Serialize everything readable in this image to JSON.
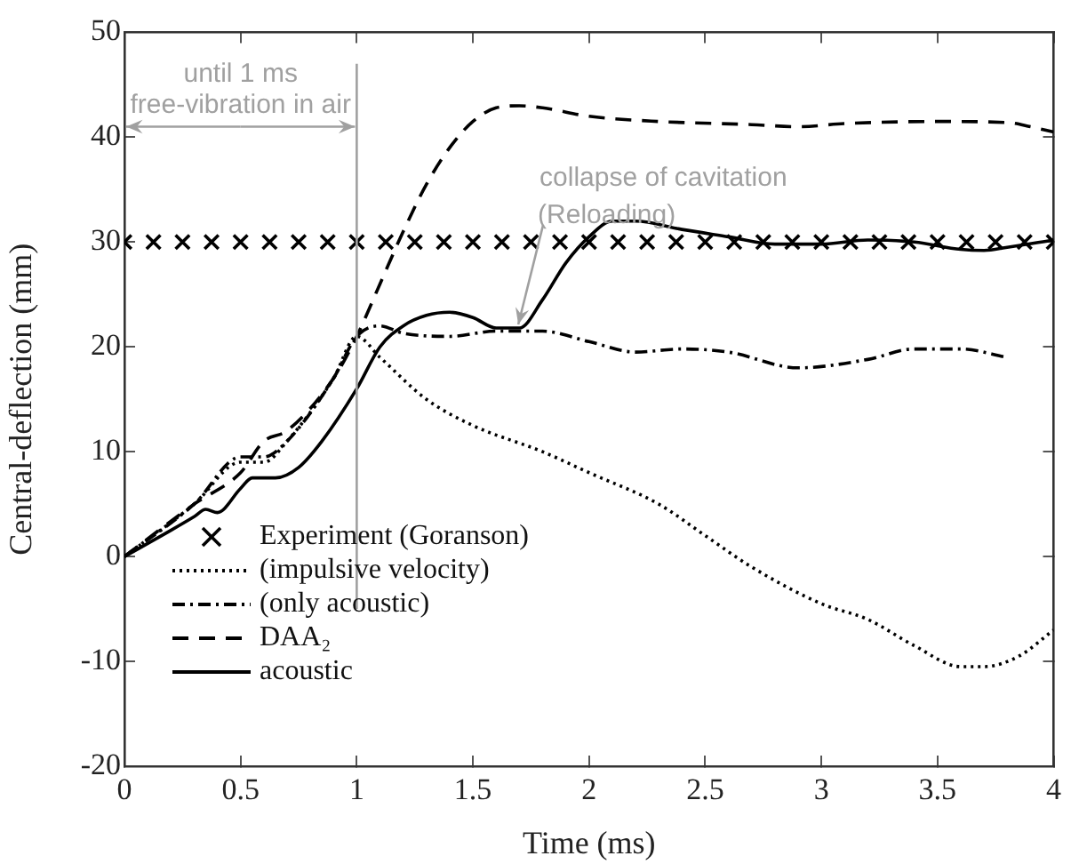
{
  "chart_data": {
    "type": "line",
    "xlabel": "Time (ms)",
    "ylabel": "Central-deflection (mm)",
    "xlim": [
      0,
      4
    ],
    "xticks": [
      0,
      0.5,
      1,
      1.5,
      2,
      2.5,
      3,
      3.5,
      4
    ],
    "ylim": [
      -20,
      50
    ],
    "yticks": [
      -20,
      -10,
      0,
      10,
      20,
      30,
      40,
      50
    ],
    "grid": false,
    "legend": "bottom left",
    "ref_lines": [
      {
        "axis": "x",
        "value": 1,
        "label": "until 1 ms",
        "color": "#a0a0a0"
      }
    ],
    "annotations": [
      "free-vibration in air",
      {
        "text": "collapse of cavitation",
        "x": 1.68,
        "y": 21.8
      },
      "(Reloading)"
    ],
    "series": [
      {
        "name": "Experiment (Goranson)",
        "type": "scatter",
        "marker": "cross",
        "color": "#000000",
        "x": [
          0,
          0.125,
          0.25,
          0.375,
          0.5,
          0.625,
          0.75,
          0.875,
          1,
          1.125,
          1.25,
          1.375,
          1.5,
          1.625,
          1.75,
          1.875,
          2,
          2.125,
          2.25,
          2.375,
          2.5,
          2.625,
          2.75,
          2.875,
          3,
          3.125,
          3.25,
          3.375,
          3.5,
          3.625,
          3.75,
          3.875,
          4
        ],
        "values": [
          30,
          30,
          30,
          30,
          30,
          30,
          30,
          30,
          30,
          30,
          30,
          30,
          30,
          30,
          30,
          30,
          30,
          30,
          30,
          30,
          30,
          30,
          30,
          30,
          30,
          30,
          30,
          30,
          30,
          30,
          30,
          30,
          30
        ]
      },
      {
        "name": "(impulsive velocity)",
        "type": "line",
        "line_style": "dotted",
        "color": "#000000",
        "x": [
          0,
          0.3,
          0.5,
          0.6,
          0.7,
          0.9,
          1,
          1.1,
          1.3,
          1.5,
          1.8,
          2,
          2.3,
          2.5,
          2.7,
          3,
          3.2,
          3.4,
          3.6,
          3.7,
          3.85,
          4
        ],
        "values": [
          0,
          5,
          9,
          9,
          11,
          17,
          21,
          19,
          15,
          12.5,
          10,
          8,
          5,
          2,
          -1,
          -4.5,
          -6,
          -8.5,
          -10.5,
          -10.5,
          -9.5,
          -7
        ]
      },
      {
        "name": "(only acoustic)",
        "type": "line",
        "line_style": "dashdot",
        "color": "#000000",
        "x": [
          0,
          0.3,
          0.5,
          0.6,
          0.7,
          0.9,
          1,
          1.1,
          1.2,
          1.4,
          1.6,
          1.8,
          2,
          2.2,
          2.4,
          2.6,
          2.9,
          3.2,
          3.4,
          3.6,
          3.8
        ],
        "values": [
          0,
          5,
          9.5,
          9.5,
          11,
          17,
          21,
          22,
          21.3,
          21,
          21.5,
          21.5,
          20.5,
          19.5,
          19.8,
          19.5,
          18,
          18.8,
          19.8,
          19.8,
          19
        ]
      },
      {
        "name": "DAA₂",
        "type": "line",
        "line_style": "dashed",
        "color": "#000000",
        "x": [
          0,
          0.3,
          0.5,
          0.6,
          0.7,
          0.9,
          1,
          1.1,
          1.2,
          1.3,
          1.4,
          1.5,
          1.6,
          1.7,
          1.8,
          2,
          2.3,
          2.7,
          2.9,
          3.1,
          3.5,
          3.8,
          3.9,
          4
        ],
        "values": [
          0,
          5,
          8,
          11,
          12,
          17,
          21,
          26,
          31,
          35.5,
          39,
          41.5,
          42.8,
          43,
          42.8,
          42,
          41.5,
          41.2,
          41,
          41.3,
          41.5,
          41.4,
          41,
          40.5
        ]
      },
      {
        "name": "acoustic",
        "type": "line",
        "line_style": "solid",
        "color": "#000000",
        "x": [
          0,
          0.2,
          0.3,
          0.35,
          0.4,
          0.5,
          0.55,
          0.65,
          0.75,
          0.85,
          1,
          1.1,
          1.2,
          1.3,
          1.4,
          1.5,
          1.6,
          1.7,
          1.8,
          1.9,
          2,
          2.1,
          2.2,
          2.4,
          2.6,
          2.8,
          3,
          3.2,
          3.4,
          3.6,
          3.7,
          3.8,
          4
        ],
        "values": [
          0,
          2.5,
          3.8,
          4.5,
          4.2,
          6.5,
          7.5,
          7.5,
          8.5,
          11,
          16,
          20,
          22,
          23,
          23.3,
          22.8,
          21.8,
          21.8,
          24.5,
          28,
          30.5,
          32,
          32,
          31.2,
          30.5,
          29.8,
          29.8,
          30.2,
          30,
          29.3,
          29.2,
          29.5,
          30.2
        ]
      }
    ]
  }
}
